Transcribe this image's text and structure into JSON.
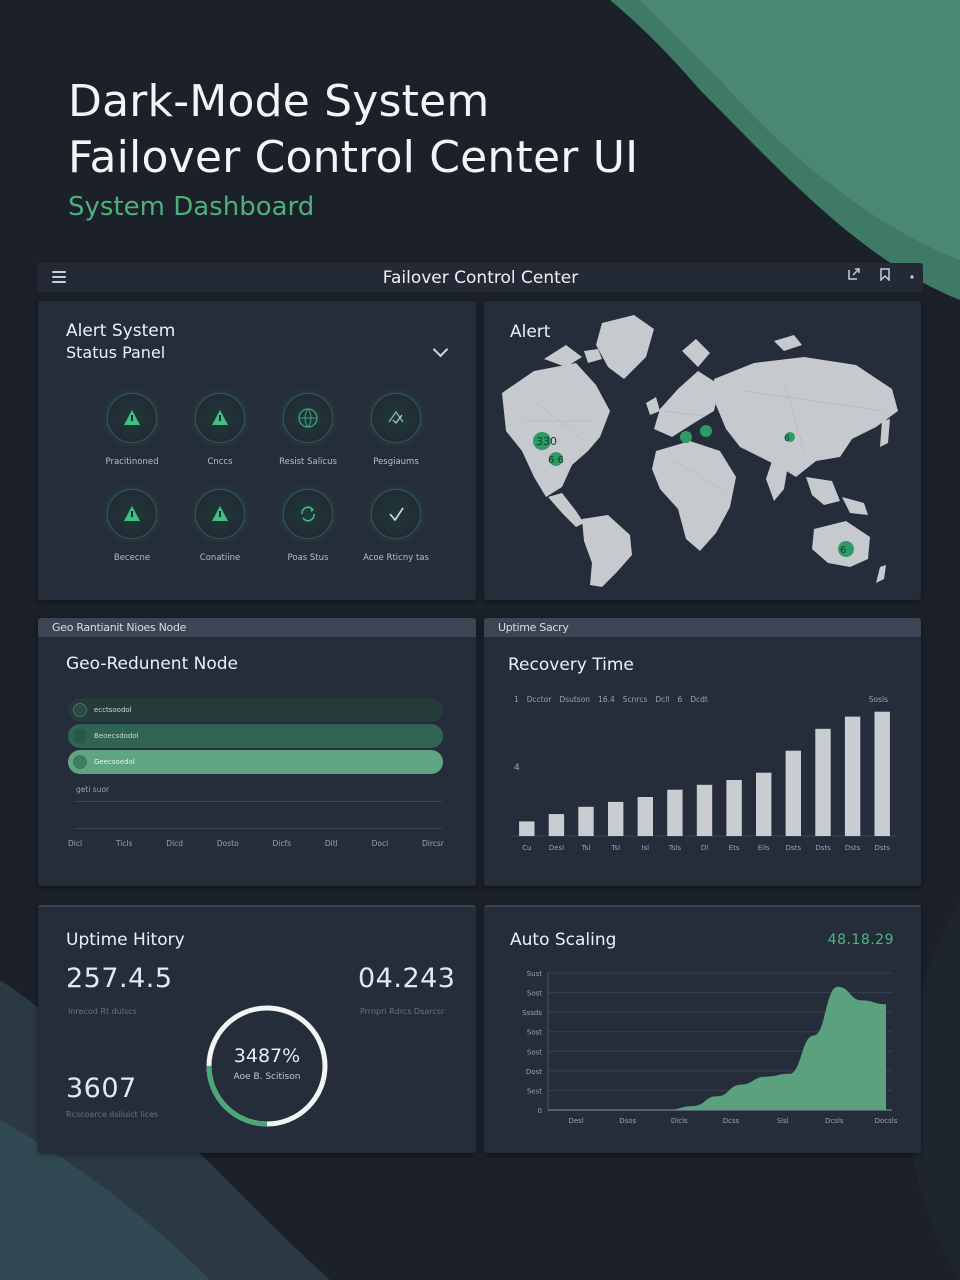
{
  "hero": {
    "title_line1": "Dark-Mode System",
    "title_line2": "Failover Control Center UI",
    "subtitle": "System Dashboard"
  },
  "topbar": {
    "title": "Failover Control Center",
    "icons": [
      "menu-icon",
      "share-icon",
      "bookmark-icon",
      "more-icon"
    ]
  },
  "alert_status": {
    "title_line1": "Alert System",
    "title_line2": "Status Panel",
    "items": [
      {
        "label": "Pracitinoned",
        "icon": "triangle-alert-icon"
      },
      {
        "label": "Cnccs",
        "icon": "triangle-alert-icon"
      },
      {
        "label": "Resist Salicus",
        "icon": "globe-icon"
      },
      {
        "label": "Pesgiaums",
        "icon": "shield-check-icon"
      },
      {
        "label": "Bececne",
        "icon": "triangle-alert-icon"
      },
      {
        "label": "Conatiine",
        "icon": "triangle-alert-icon"
      },
      {
        "label": "Poas Stus",
        "icon": "refresh-icon"
      },
      {
        "label": "Acoe Rticny tas",
        "icon": "check-icon"
      }
    ]
  },
  "alert_map": {
    "title": "Alert",
    "markers": [
      "330",
      "6 6",
      "6",
      "6"
    ]
  },
  "geo": {
    "tab": "Geo Rantianit Nioes Node",
    "title": "Geo-Redunent Node",
    "bars": [
      {
        "label": "ecctsoodol",
        "fill": 1.0
      },
      {
        "label": "Beoecsdodol",
        "fill": 1.0
      },
      {
        "label": "Geecsoedol",
        "fill": 1.0
      }
    ],
    "extra_label": "geti suor",
    "axis_labels": [
      "Dicl",
      "Ticls",
      "Dicd",
      "Dosto",
      "Dicfs",
      "Ditl",
      "Docl",
      "Dircsr"
    ]
  },
  "recovery": {
    "tab": "Uptime Sacry",
    "title": "Recovery Time",
    "header_labels": [
      "1",
      "Dcctor",
      "Dsutson",
      "16.4",
      "Scnrcs",
      "Dcll",
      "6",
      "Dcdt"
    ],
    "top_right_label": "Sosls",
    "mid_label": "4"
  },
  "uptime": {
    "title": "Uptime Hitory",
    "stat1_value": "257.4.5",
    "stat1_caption": "Inrecod Rt dulscs",
    "stat2_value": "04.243",
    "stat2_caption": "Prrnpri Rdrcs Dsarcsr",
    "stat3_value": "3607",
    "stat3_caption": "Rcscoarce dsiluict lices",
    "gauge_value": "3487%",
    "gauge_caption": "Aoe B. Scitison",
    "gauge_fill": 0.25
  },
  "autoscaling": {
    "title": "Auto Scaling",
    "value": "48.18.29",
    "y_ticks": [
      "Sust",
      "Sost",
      "Sssds",
      "Sost",
      "Sost",
      "Dost",
      "Sest",
      "0"
    ],
    "x_ticks": [
      "Desl",
      "Dsos",
      "Dicls",
      "Dcss",
      "Sisl",
      "Dcsls",
      "Docsls"
    ]
  },
  "colors": {
    "background": "#1b2029",
    "panel": "#252d3a",
    "accent_green": "#4fae7e",
    "bar_gray": "#c9ccd1"
  },
  "chart_data": [
    {
      "type": "bar",
      "title": "Recovery Time",
      "categories": [
        "Cu",
        "Desl",
        "Tsl",
        "Tsl",
        "Isl",
        "Tsls",
        "Dl",
        "Ets",
        "Eils",
        "Dsts",
        "Dsts",
        "Dsts",
        "Dsts"
      ],
      "values": [
        12,
        18,
        24,
        28,
        32,
        38,
        42,
        46,
        52,
        70,
        88,
        98,
        102
      ],
      "ylim": [
        0,
        110
      ]
    },
    {
      "type": "area",
      "title": "Auto Scaling",
      "x": [
        0,
        1,
        2,
        3,
        4,
        5,
        6,
        7,
        8,
        9,
        10,
        11,
        12,
        13,
        14
      ],
      "values": [
        0,
        0,
        0,
        0,
        0,
        0.3,
        4,
        14,
        26,
        34,
        37,
        76,
        126,
        112,
        108
      ],
      "ylim": [
        0,
        140
      ]
    }
  ]
}
